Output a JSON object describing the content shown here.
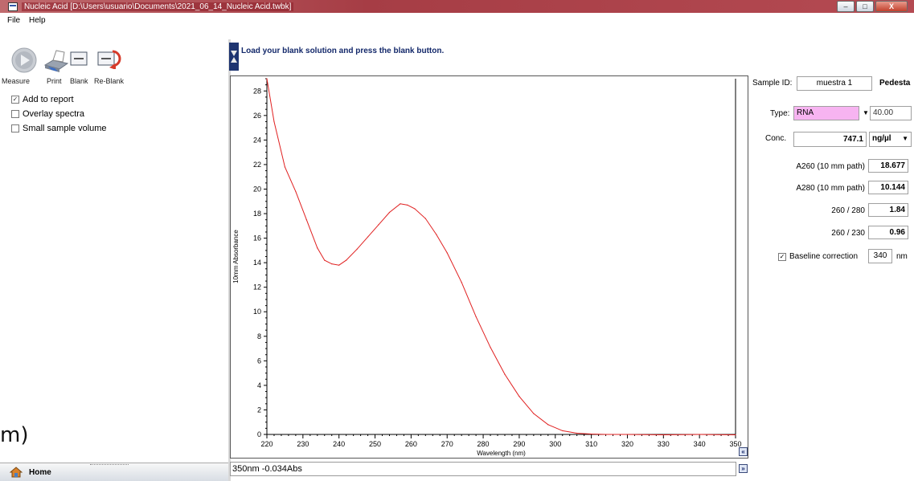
{
  "window": {
    "title": "Nucleic Acid  [D:\\Users\\usuario\\Documents\\2021_06_14_Nucleic Acid.twbk]",
    "minimize": "–",
    "maximize": "□",
    "close": "X"
  },
  "menu": {
    "file": "File",
    "help": "Help"
  },
  "toolbar": {
    "measure": "Measure",
    "print": "Print",
    "blank": "Blank",
    "reblank": "Re-Blank"
  },
  "options": [
    {
      "label": "Add to report",
      "checked": true
    },
    {
      "label": "Overlay spectra",
      "checked": false
    },
    {
      "label": "Small sample volume",
      "checked": false
    }
  ],
  "overlay_text": "m)",
  "home": {
    "label": "Home"
  },
  "instruction": "Load your blank solution and press the blank button.",
  "status": {
    "readout": "350nm -0.034Abs"
  },
  "side": {
    "sample_id_label": "Sample ID:",
    "sample_id_value": "muestra 1",
    "pedestal_label": "Pedesta",
    "type_label": "Type:",
    "type_value": "RNA",
    "type_factor": "40.00",
    "conc_label": "Conc.",
    "conc_value": "747.1",
    "conc_unit": "ng/µl",
    "a260_label": "A260 (10 mm path)",
    "a260_value": "18.677",
    "a280_label": "A280 (10 mm path)",
    "a280_value": "10.144",
    "r260_280_label": "260 / 280",
    "r260_280_value": "1.84",
    "r260_230_label": "260 / 230",
    "r260_230_value": "0.96",
    "baseline_label": "Baseline correction",
    "baseline_checked": true,
    "baseline_value": "340",
    "baseline_unit": "nm"
  },
  "colors": {
    "curve": "#e02020",
    "title_bar": "#a63d45",
    "highlight": "#f7b4f1",
    "instruction": "#13286a"
  },
  "icons": {
    "measure": "play-button-icon",
    "print": "printer-icon",
    "blank": "blank-icon",
    "reblank": "reblank-icon",
    "home": "home-icon",
    "nav": "double-chevron-icon"
  },
  "chart_data": {
    "type": "line",
    "xlabel": "Wavelength (nm)",
    "ylabel": "10mm Absorbance",
    "xlim": [
      220,
      350
    ],
    "ylim": [
      0,
      29
    ],
    "xticks": [
      220,
      230,
      240,
      250,
      260,
      270,
      280,
      290,
      300,
      310,
      320,
      330,
      340,
      350
    ],
    "yticks": [
      0,
      2,
      4,
      6,
      8,
      10,
      12,
      14,
      16,
      18,
      20,
      22,
      24,
      26,
      28
    ],
    "grid": false,
    "series": [
      {
        "x": [
          220,
          222,
          225,
          228,
          231,
          234,
          236,
          238,
          240,
          242,
          245,
          248,
          251,
          254,
          257,
          259,
          261,
          264,
          267,
          270,
          274,
          278,
          282,
          286,
          290,
          294,
          298,
          302,
          306,
          310,
          314,
          320,
          330,
          340,
          350
        ],
        "y": [
          29.6,
          25.5,
          21.8,
          19.8,
          17.5,
          15.2,
          14.2,
          13.9,
          13.8,
          14.2,
          15.1,
          16.1,
          17.1,
          18.1,
          18.8,
          18.7,
          18.4,
          17.6,
          16.3,
          14.8,
          12.4,
          9.6,
          7.1,
          4.9,
          3.1,
          1.7,
          0.8,
          0.3,
          0.1,
          0.03,
          0.0,
          0.0,
          -0.03,
          0.0,
          -0.03
        ]
      }
    ]
  }
}
